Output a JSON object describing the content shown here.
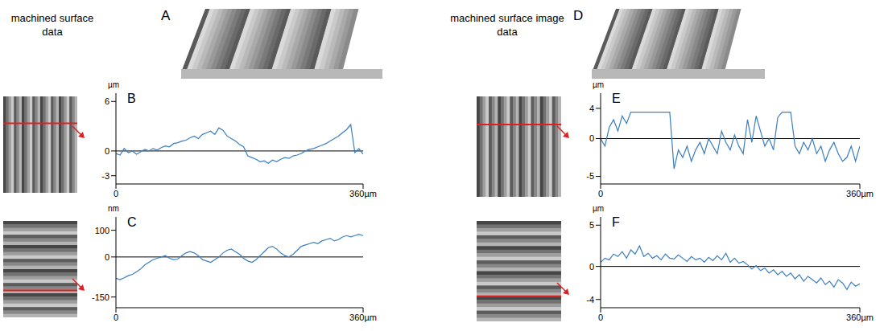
{
  "headings": {
    "left": "machined surface data",
    "right": "machined surface image data"
  },
  "panels": [
    "A",
    "D"
  ],
  "chart_data": [
    {
      "type": "line",
      "title": "B",
      "y_label": "µm",
      "color": "#3a7fc1",
      "xlim": [
        0,
        360
      ],
      "xticks": [
        0,
        {
          "value": 360,
          "label": "360µm"
        }
      ],
      "ylim": [
        -4,
        7
      ],
      "yticks": [
        -3,
        0,
        6
      ],
      "x": [
        0,
        6,
        12,
        18,
        24,
        30,
        36,
        42,
        48,
        54,
        60,
        66,
        72,
        78,
        84,
        90,
        96,
        102,
        108,
        114,
        120,
        126,
        132,
        138,
        144,
        150,
        156,
        162,
        168,
        174,
        180,
        186,
        192,
        198,
        204,
        210,
        216,
        222,
        228,
        234,
        240,
        246,
        252,
        258,
        264,
        270,
        276,
        282,
        288,
        294,
        300,
        306,
        312,
        318,
        324,
        330,
        336,
        342,
        348,
        354,
        360
      ],
      "values": [
        -0.3,
        -0.5,
        0.3,
        -0.2,
        0,
        -0.4,
        -0.1,
        0.2,
        0,
        0.3,
        0.1,
        0.4,
        0.6,
        0.5,
        0.9,
        1,
        1.2,
        1.3,
        1.6,
        1.8,
        1.5,
        2,
        2.2,
        2.4,
        2,
        2.8,
        2.5,
        1.8,
        1.5,
        1.2,
        0.8,
        0.5,
        -0.6,
        -0.8,
        -1,
        -1.3,
        -1.2,
        -1.5,
        -1.1,
        -1.3,
        -1,
        -0.8,
        -0.9,
        -0.6,
        -0.5,
        -0.3,
        0,
        0.2,
        0.3,
        0.5,
        0.7,
        0.9,
        1.2,
        1.5,
        1.8,
        2.2,
        2.6,
        3.2,
        -0.2,
        0.3,
        -0.4
      ]
    },
    {
      "type": "line",
      "title": "C",
      "y_label": "nm",
      "color": "#3a7fc1",
      "xlim": [
        0,
        360
      ],
      "xticks": [
        0,
        {
          "value": 360,
          "label": "360µm"
        }
      ],
      "ylim": [
        -190,
        150
      ],
      "yticks": [
        -150,
        0,
        100
      ],
      "x": [
        0,
        6,
        12,
        18,
        24,
        30,
        36,
        42,
        48,
        54,
        60,
        66,
        72,
        78,
        84,
        90,
        96,
        102,
        108,
        114,
        120,
        126,
        132,
        138,
        144,
        150,
        156,
        162,
        168,
        174,
        180,
        186,
        192,
        198,
        204,
        210,
        216,
        222,
        228,
        234,
        240,
        246,
        252,
        258,
        264,
        270,
        276,
        282,
        288,
        294,
        300,
        306,
        312,
        318,
        324,
        330,
        336,
        342,
        348,
        354,
        360
      ],
      "values": [
        -80,
        -85,
        -78,
        -70,
        -65,
        -55,
        -45,
        -30,
        -20,
        -10,
        -5,
        0,
        5,
        -5,
        -10,
        -8,
        5,
        15,
        20,
        15,
        5,
        -10,
        -15,
        -20,
        -10,
        0,
        15,
        25,
        30,
        20,
        10,
        -5,
        -15,
        -20,
        -10,
        5,
        20,
        35,
        40,
        30,
        15,
        5,
        0,
        10,
        25,
        40,
        45,
        50,
        55,
        50,
        60,
        65,
        70,
        60,
        65,
        75,
        80,
        75,
        80,
        85,
        80
      ]
    },
    {
      "type": "line",
      "title": "E",
      "y_label": "µm",
      "color": "#3a7fc1",
      "xlim": [
        0,
        360
      ],
      "xticks": [
        0,
        {
          "value": 360,
          "label": "360µm"
        }
      ],
      "ylim": [
        -6,
        6
      ],
      "yticks": [
        -5,
        0,
        4
      ],
      "x": [
        0,
        6,
        12,
        18,
        24,
        30,
        36,
        42,
        48,
        54,
        60,
        66,
        72,
        78,
        84,
        90,
        96,
        102,
        108,
        114,
        120,
        126,
        132,
        138,
        144,
        150,
        156,
        162,
        168,
        174,
        180,
        186,
        192,
        198,
        204,
        210,
        216,
        222,
        228,
        234,
        240,
        246,
        252,
        258,
        264,
        270,
        276,
        282,
        288,
        294,
        300,
        306,
        312,
        318,
        324,
        330,
        336,
        342,
        348,
        354,
        360
      ],
      "values": [
        0,
        -1,
        1.5,
        2.5,
        1,
        3,
        2,
        3.5,
        3.5,
        3.5,
        3.5,
        3.5,
        3.5,
        3.5,
        3.5,
        3.5,
        3.5,
        -4,
        -1.5,
        -2.5,
        -1,
        -3,
        -1.5,
        -0.5,
        -2,
        0,
        -1,
        -2,
        1,
        -0.5,
        -1.5,
        0.5,
        -1,
        -2,
        2.5,
        -0.5,
        3,
        1,
        -1,
        0,
        -1.5,
        2.8,
        3.5,
        3.5,
        3.5,
        -1,
        -2,
        -0.5,
        -1.5,
        0,
        -2,
        -1,
        -3,
        -1.5,
        -0.5,
        -2,
        -3,
        -2.5,
        -1,
        -3,
        -1
      ]
    },
    {
      "type": "line",
      "title": "F",
      "y_label": "µm",
      "color": "#3a7fc1",
      "xlim": [
        0,
        360
      ],
      "xticks": [
        0,
        {
          "value": 360,
          "label": "360µm"
        }
      ],
      "ylim": [
        -5,
        6
      ],
      "yticks": [
        -4,
        0,
        5
      ],
      "x": [
        0,
        6,
        12,
        18,
        24,
        30,
        36,
        42,
        48,
        54,
        60,
        66,
        72,
        78,
        84,
        90,
        96,
        102,
        108,
        114,
        120,
        126,
        132,
        138,
        144,
        150,
        156,
        162,
        168,
        174,
        180,
        186,
        192,
        198,
        204,
        210,
        216,
        222,
        228,
        234,
        240,
        246,
        252,
        258,
        264,
        270,
        276,
        282,
        288,
        294,
        300,
        306,
        312,
        318,
        324,
        330,
        336,
        342,
        348,
        354,
        360
      ],
      "values": [
        0.5,
        1,
        0.8,
        1.5,
        1.2,
        1.8,
        1,
        2,
        1.5,
        2.5,
        1.2,
        1.6,
        1,
        1.3,
        0.8,
        1.5,
        1,
        0.9,
        1.4,
        1,
        0.6,
        1.2,
        0.8,
        1,
        0.5,
        1.1,
        0.7,
        1.3,
        0.8,
        1.6,
        0.5,
        1,
        0.4,
        0.6,
        0.2,
        -0.3,
        0.1,
        -0.5,
        -0.2,
        -0.8,
        -0.4,
        -1,
        -0.6,
        -1.2,
        -0.8,
        -1.5,
        -1,
        -1.8,
        -1.2,
        -1.6,
        -2,
        -1.4,
        -2.2,
        -1.8,
        -2.5,
        -1.6,
        -2,
        -2.8,
        -1.9,
        -2.4,
        -2.1
      ]
    }
  ]
}
